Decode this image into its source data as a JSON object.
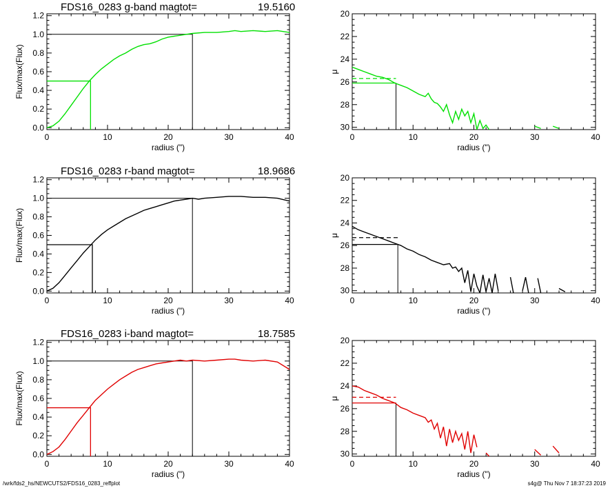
{
  "footer": {
    "path": "/wrk/fds2_hs/NEWCUTS2/FDS16_0283_reffplot",
    "stamp": "s4g@  Thu Nov  7 18:37:23 2019"
  },
  "chart_data": [
    {
      "type": "line",
      "panel": "growth-curve",
      "band": "g",
      "color": "#00e000",
      "title": "FDS16_0283 g-band  magtot=",
      "magtot": "19.5160",
      "xlabel": "radius (\")",
      "ylabel": "Flux/max(Flux)",
      "xlim": [
        0,
        40
      ],
      "ylim": [
        -0.02,
        1.22
      ],
      "xticks": [
        0,
        10,
        20,
        30,
        40
      ],
      "yticks": [
        0.0,
        0.2,
        0.4,
        0.6,
        0.8,
        1.0,
        1.2
      ],
      "r_eff": 7.2,
      "r_total": 24,
      "series": [
        {
          "x": [
            0,
            1,
            2,
            3,
            4,
            5,
            6,
            7,
            8,
            9,
            10,
            11,
            12,
            13,
            14,
            15,
            16,
            17,
            18,
            19,
            20,
            21,
            22,
            23,
            24,
            26,
            28,
            30,
            31,
            32,
            34,
            36,
            38,
            40
          ],
          "y": [
            0.0,
            0.02,
            0.07,
            0.15,
            0.24,
            0.33,
            0.42,
            0.5,
            0.57,
            0.63,
            0.68,
            0.73,
            0.77,
            0.8,
            0.84,
            0.87,
            0.89,
            0.9,
            0.92,
            0.95,
            0.97,
            0.98,
            0.99,
            1.0,
            1.01,
            1.02,
            1.02,
            1.03,
            1.04,
            1.03,
            1.04,
            1.03,
            1.04,
            1.02
          ]
        }
      ]
    },
    {
      "type": "line",
      "panel": "surface-brightness",
      "band": "g",
      "color": "#00e000",
      "xlabel": "radius (\")",
      "ylabel": "μ",
      "xlim": [
        0,
        40
      ],
      "ylim": [
        20,
        30.2
      ],
      "y_inverted": true,
      "xticks": [
        0,
        10,
        20,
        30,
        40
      ],
      "yticks": [
        20,
        22,
        24,
        26,
        28,
        30
      ],
      "r_eff": 7.2,
      "mu_eff": 26.1,
      "mu_mean": 25.7,
      "series": [
        {
          "x": [
            0,
            1,
            2,
            3,
            4,
            5,
            6,
            7,
            8,
            9,
            10,
            11,
            12,
            12.5,
            13,
            13.5,
            14,
            14.5,
            15,
            15.5,
            16,
            16.5,
            17,
            17.5,
            18,
            18.5,
            19,
            19.5,
            20,
            20.5,
            21,
            21.5,
            22,
            22.5,
            23,
            24,
            25,
            26,
            27,
            28,
            29,
            30,
            31,
            32,
            33,
            34,
            35,
            36
          ],
          "y": [
            24.7,
            24.9,
            25.1,
            25.3,
            25.5,
            25.6,
            25.8,
            26.1,
            26.3,
            26.5,
            26.8,
            27.1,
            27.3,
            27.0,
            27.5,
            27.8,
            27.9,
            28.2,
            28.6,
            28.0,
            28.9,
            29.6,
            28.6,
            29.3,
            28.4,
            29.0,
            28.6,
            29.6,
            28.8,
            30.2,
            29.4,
            30.1,
            29.8,
            30.2,
            null,
            29.7,
            null,
            29.6,
            null,
            30.0,
            null,
            29.9,
            30.1,
            null,
            29.9,
            30.1,
            null,
            30.0
          ]
        }
      ]
    },
    {
      "type": "line",
      "panel": "growth-curve",
      "band": "r",
      "color": "#000000",
      "title": "FDS16_0283 r-band  magtot=",
      "magtot": "18.9686",
      "xlabel": "radius (\")",
      "ylabel": "Flux/max(Flux)",
      "xlim": [
        0,
        40
      ],
      "ylim": [
        -0.02,
        1.22
      ],
      "xticks": [
        0,
        10,
        20,
        30,
        40
      ],
      "yticks": [
        0.0,
        0.2,
        0.4,
        0.6,
        0.8,
        1.0,
        1.2
      ],
      "r_eff": 7.5,
      "r_total": 24,
      "series": [
        {
          "x": [
            0,
            1,
            2,
            3,
            4,
            5,
            6,
            7,
            8,
            9,
            10,
            11,
            12,
            13,
            14,
            15,
            16,
            17,
            18,
            19,
            20,
            21,
            22,
            23,
            24,
            25,
            26,
            28,
            30,
            32,
            34,
            36,
            38,
            40
          ],
          "y": [
            0.0,
            0.03,
            0.09,
            0.17,
            0.25,
            0.33,
            0.41,
            0.48,
            0.55,
            0.61,
            0.66,
            0.7,
            0.74,
            0.78,
            0.81,
            0.84,
            0.87,
            0.89,
            0.91,
            0.93,
            0.95,
            0.97,
            0.98,
            0.99,
            1.0,
            0.99,
            1.0,
            1.01,
            1.02,
            1.02,
            1.01,
            1.01,
            1.0,
            0.97
          ]
        }
      ]
    },
    {
      "type": "line",
      "panel": "surface-brightness",
      "band": "r",
      "color": "#000000",
      "xlabel": "radius (\")",
      "ylabel": "μ",
      "xlim": [
        0,
        40
      ],
      "ylim": [
        20,
        30.2
      ],
      "y_inverted": true,
      "xticks": [
        0,
        10,
        20,
        30,
        40
      ],
      "yticks": [
        20,
        22,
        24,
        26,
        28,
        30
      ],
      "r_eff": 7.5,
      "mu_eff": 25.9,
      "mu_mean": 25.3,
      "series": [
        {
          "x": [
            0,
            1,
            2,
            3,
            4,
            5,
            6,
            7,
            8,
            9,
            10,
            11,
            12,
            13,
            14,
            15,
            16,
            16.5,
            17,
            17.5,
            18,
            18.5,
            19,
            19.5,
            20,
            20.5,
            21,
            21.5,
            22,
            22.5,
            23,
            23.5,
            24,
            25,
            26,
            26.5,
            27,
            28,
            28.5,
            29,
            30,
            30.5,
            31,
            32,
            33,
            34,
            35,
            36
          ],
          "y": [
            24.3,
            24.6,
            24.8,
            25.0,
            25.2,
            25.4,
            25.6,
            25.8,
            26.0,
            26.3,
            26.5,
            26.8,
            27.0,
            27.3,
            27.5,
            27.7,
            27.6,
            28.0,
            27.9,
            28.3,
            28.0,
            29.3,
            28.2,
            30.1,
            28.5,
            29.6,
            30.2,
            28.6,
            30.1,
            28.9,
            30.2,
            28.5,
            30.0,
            null,
            28.8,
            30.2,
            null,
            30.0,
            28.8,
            30.2,
            null,
            28.9,
            30.2,
            null,
            null,
            29.8,
            30.1,
            null
          ]
        }
      ]
    },
    {
      "type": "line",
      "panel": "growth-curve",
      "band": "i",
      "color": "#e00000",
      "title": "FDS16_0283 i-band  magtot=",
      "magtot": "18.7585",
      "xlabel": "radius (\")",
      "ylabel": "Flux/max(Flux)",
      "xlim": [
        0,
        40
      ],
      "ylim": [
        -0.02,
        1.22
      ],
      "xticks": [
        0,
        10,
        20,
        30,
        40
      ],
      "yticks": [
        0.0,
        0.2,
        0.4,
        0.6,
        0.8,
        1.0,
        1.2
      ],
      "r_eff": 7.2,
      "r_total": 24,
      "series": [
        {
          "x": [
            0,
            1,
            2,
            3,
            4,
            5,
            6,
            7,
            8,
            9,
            10,
            11,
            12,
            13,
            14,
            15,
            16,
            17,
            18,
            19,
            20,
            21,
            22,
            23,
            24,
            26,
            28,
            30,
            31,
            32,
            34,
            36,
            38,
            40
          ],
          "y": [
            0.0,
            0.03,
            0.08,
            0.16,
            0.25,
            0.34,
            0.42,
            0.5,
            0.58,
            0.64,
            0.7,
            0.75,
            0.8,
            0.84,
            0.88,
            0.91,
            0.93,
            0.95,
            0.97,
            0.98,
            0.99,
            1.0,
            1.01,
            1.0,
            1.01,
            1.0,
            1.01,
            1.02,
            1.02,
            1.01,
            1.0,
            1.01,
            0.99,
            0.91
          ]
        }
      ]
    },
    {
      "type": "line",
      "panel": "surface-brightness",
      "band": "i",
      "color": "#e00000",
      "xlabel": "radius (\")",
      "ylabel": "μ",
      "xlim": [
        0,
        40
      ],
      "ylim": [
        20,
        30.2
      ],
      "y_inverted": true,
      "xticks": [
        0,
        10,
        20,
        30,
        40
      ],
      "yticks": [
        20,
        22,
        24,
        26,
        28,
        30
      ],
      "r_eff": 7.2,
      "mu_eff": 25.5,
      "mu_mean": 25.0,
      "series": [
        {
          "x": [
            0,
            1,
            2,
            3,
            4,
            5,
            6,
            7,
            8,
            9,
            10,
            11,
            12,
            12.5,
            13,
            13.5,
            14,
            14.5,
            15,
            15.5,
            16,
            16.5,
            17,
            17.5,
            18,
            18.5,
            19,
            19.5,
            20,
            20.5,
            21,
            22,
            22.5,
            23,
            24,
            26,
            26.5,
            27,
            28,
            29,
            30,
            31,
            32,
            33,
            34,
            35,
            35.5
          ],
          "y": [
            24.0,
            24.1,
            24.4,
            24.6,
            24.8,
            25.1,
            25.3,
            25.5,
            25.9,
            26.1,
            26.4,
            26.6,
            26.8,
            27.2,
            27.0,
            27.8,
            27.3,
            28.6,
            27.6,
            29.3,
            27.8,
            29.0,
            28.0,
            28.8,
            28.2,
            29.6,
            28.0,
            29.9,
            28.3,
            29.4,
            null,
            29.9,
            30.2,
            null,
            29.5,
            null,
            29.3,
            null,
            30.2,
            null,
            29.6,
            30.1,
            null,
            29.3,
            29.9,
            null,
            29.3
          ]
        }
      ]
    }
  ]
}
